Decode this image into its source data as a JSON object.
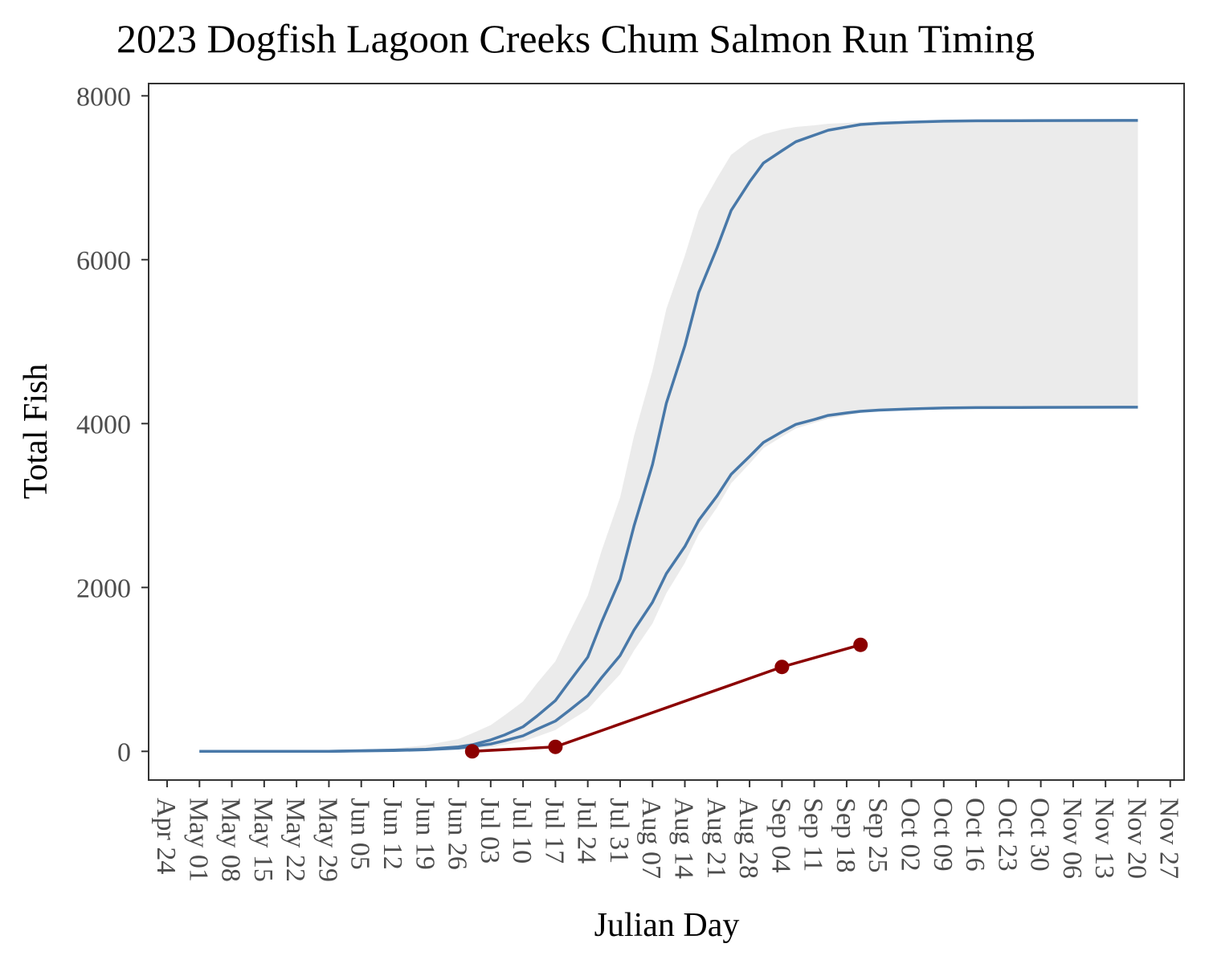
{
  "chart_data": {
    "type": "line",
    "title": "2023 Dogfish Lagoon Creeks Chum Salmon Run Timing",
    "xlabel": "Julian Day",
    "ylabel": "Total Fish",
    "x_tick_labels": [
      "Apr 24",
      "May 01",
      "May 08",
      "May 15",
      "May 22",
      "May 29",
      "Jun 05",
      "Jun 12",
      "Jun 19",
      "Jun 26",
      "Jul 03",
      "Jul 10",
      "Jul 17",
      "Jul 24",
      "Jul 31",
      "Aug 07",
      "Aug 14",
      "Aug 21",
      "Aug 28",
      "Sep 04",
      "Sep 11",
      "Sep 18",
      "Sep 25",
      "Oct 02",
      "Oct 09",
      "Oct 16",
      "Oct 23",
      "Oct 30",
      "Nov 06",
      "Nov 13",
      "Nov 20",
      "Nov 27"
    ],
    "y_ticks": [
      0,
      2000,
      4000,
      6000,
      8000
    ],
    "y_tick_labels": [
      "0",
      "2000",
      "4000",
      "6000",
      "8000"
    ],
    "xlim": [
      "2023-04-20",
      "2023-11-30"
    ],
    "ylim": [
      -350,
      8150
    ],
    "grid": false,
    "colors": {
      "curve": "#4878a8",
      "band": "#ebebeb",
      "observed": "#8b0000",
      "axis": "#333333"
    },
    "series": [
      {
        "role": "upper-curve",
        "x": [
          "2023-05-01",
          "2023-05-15",
          "2023-05-29",
          "2023-06-12",
          "2023-06-19",
          "2023-06-26",
          "2023-06-29",
          "2023-07-03",
          "2023-07-06",
          "2023-07-10",
          "2023-07-13",
          "2023-07-17",
          "2023-07-20",
          "2023-07-24",
          "2023-07-27",
          "2023-07-31",
          "2023-08-03",
          "2023-08-07",
          "2023-08-10",
          "2023-08-14",
          "2023-08-17",
          "2023-08-21",
          "2023-08-24",
          "2023-08-28",
          "2023-08-31",
          "2023-09-04",
          "2023-09-07",
          "2023-09-11",
          "2023-09-14",
          "2023-09-18",
          "2023-09-21",
          "2023-09-25",
          "2023-10-02",
          "2023-10-09",
          "2023-10-16",
          "2023-10-30",
          "2023-11-20"
        ],
        "y": [
          0,
          0,
          0,
          15,
          25,
          55,
          80,
          140,
          200,
          300,
          430,
          620,
          850,
          1150,
          1580,
          2100,
          2750,
          3500,
          4250,
          4950,
          5600,
          6150,
          6600,
          6950,
          7180,
          7330,
          7440,
          7520,
          7580,
          7620,
          7650,
          7665,
          7680,
          7690,
          7695,
          7698,
          7700
        ]
      },
      {
        "role": "lower-curve",
        "x": [
          "2023-05-01",
          "2023-05-15",
          "2023-05-29",
          "2023-06-12",
          "2023-06-19",
          "2023-06-26",
          "2023-06-29",
          "2023-07-03",
          "2023-07-06",
          "2023-07-10",
          "2023-07-13",
          "2023-07-17",
          "2023-07-20",
          "2023-07-24",
          "2023-07-27",
          "2023-07-31",
          "2023-08-03",
          "2023-08-07",
          "2023-08-10",
          "2023-08-14",
          "2023-08-17",
          "2023-08-21",
          "2023-08-24",
          "2023-08-28",
          "2023-08-31",
          "2023-09-04",
          "2023-09-07",
          "2023-09-11",
          "2023-09-14",
          "2023-09-18",
          "2023-09-21",
          "2023-09-25",
          "2023-10-02",
          "2023-10-09",
          "2023-10-16",
          "2023-10-30",
          "2023-11-20"
        ],
        "y": [
          0,
          0,
          0,
          10,
          20,
          40,
          60,
          90,
          130,
          190,
          270,
          370,
          500,
          680,
          900,
          1170,
          1480,
          1820,
          2170,
          2500,
          2820,
          3120,
          3380,
          3600,
          3770,
          3900,
          3990,
          4050,
          4100,
          4130,
          4150,
          4165,
          4180,
          4190,
          4195,
          4198,
          4200
        ]
      },
      {
        "role": "band-upper",
        "x": [
          "2023-05-01",
          "2023-05-15",
          "2023-05-29",
          "2023-06-12",
          "2023-06-19",
          "2023-06-26",
          "2023-06-29",
          "2023-07-03",
          "2023-07-06",
          "2023-07-10",
          "2023-07-13",
          "2023-07-17",
          "2023-07-20",
          "2023-07-24",
          "2023-07-27",
          "2023-07-31",
          "2023-08-03",
          "2023-08-07",
          "2023-08-10",
          "2023-08-14",
          "2023-08-17",
          "2023-08-21",
          "2023-08-24",
          "2023-08-28",
          "2023-08-31",
          "2023-09-04",
          "2023-09-07",
          "2023-09-11",
          "2023-09-14",
          "2023-09-18",
          "2023-09-21",
          "2023-09-25",
          "2023-10-02",
          "2023-10-09",
          "2023-10-16",
          "2023-10-30",
          "2023-11-20"
        ],
        "y": [
          0,
          0,
          5,
          35,
          75,
          150,
          220,
          320,
          440,
          610,
          830,
          1100,
          1450,
          1900,
          2450,
          3100,
          3850,
          4650,
          5400,
          6050,
          6600,
          7000,
          7280,
          7450,
          7530,
          7590,
          7620,
          7640,
          7660,
          7670,
          7680,
          7685,
          7690,
          7695,
          7698,
          7700,
          7700
        ]
      },
      {
        "role": "band-lower",
        "x": [
          "2023-05-01",
          "2023-05-15",
          "2023-05-29",
          "2023-06-12",
          "2023-06-19",
          "2023-06-26",
          "2023-06-29",
          "2023-07-03",
          "2023-07-06",
          "2023-07-10",
          "2023-07-13",
          "2023-07-17",
          "2023-07-20",
          "2023-07-24",
          "2023-07-27",
          "2023-07-31",
          "2023-08-03",
          "2023-08-07",
          "2023-08-10",
          "2023-08-14",
          "2023-08-17",
          "2023-08-21",
          "2023-08-24",
          "2023-08-28",
          "2023-08-31",
          "2023-09-04",
          "2023-09-07",
          "2023-09-11",
          "2023-09-14",
          "2023-09-18",
          "2023-09-21",
          "2023-09-25",
          "2023-10-02",
          "2023-10-09",
          "2023-10-16",
          "2023-10-30",
          "2023-11-20"
        ],
        "y": [
          0,
          0,
          0,
          5,
          10,
          20,
          30,
          50,
          80,
          120,
          180,
          260,
          370,
          510,
          700,
          940,
          1230,
          1560,
          1930,
          2300,
          2650,
          2980,
          3270,
          3510,
          3700,
          3840,
          3940,
          4010,
          4060,
          4100,
          4130,
          4150,
          4170,
          4185,
          4192,
          4198,
          4200
        ]
      },
      {
        "role": "observed",
        "x": [
          "2023-06-29",
          "2023-07-17",
          "2023-09-04",
          "2023-09-21"
        ],
        "y": [
          0,
          55,
          1030,
          1300
        ]
      }
    ]
  }
}
